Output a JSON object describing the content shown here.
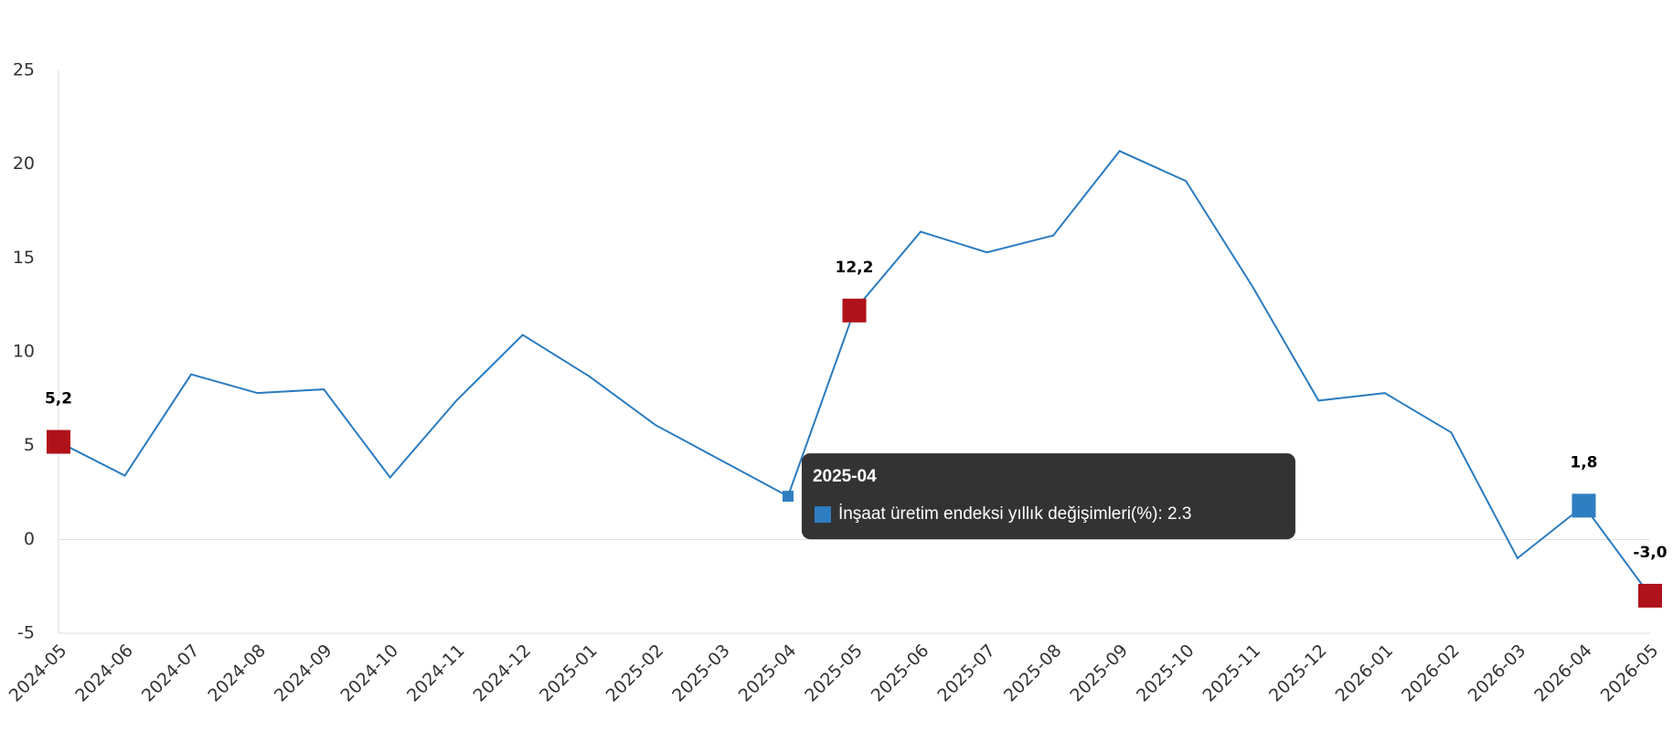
{
  "chart_data": {
    "type": "line",
    "categories": [
      "2024-05",
      "2024-06",
      "2024-07",
      "2024-08",
      "2024-09",
      "2024-10",
      "2024-11",
      "2024-12",
      "2025-01",
      "2025-02",
      "2025-03",
      "2025-04",
      "2025-05",
      "2025-06",
      "2025-07",
      "2025-08",
      "2025-09",
      "2025-10",
      "2025-11",
      "2025-12",
      "2026-01",
      "2026-02",
      "2026-03",
      "2026-04",
      "2026-05"
    ],
    "values": [
      5.2,
      3.4,
      8.8,
      7.8,
      8.0,
      3.3,
      7.4,
      10.9,
      8.7,
      6.1,
      4.2,
      2.3,
      12.2,
      16.4,
      15.3,
      16.2,
      20.7,
      19.1,
      13.5,
      7.4,
      7.8,
      5.7,
      -1.0,
      1.8,
      -3.0
    ],
    "value_labels": [
      "5,2",
      null,
      null,
      null,
      null,
      null,
      null,
      null,
      null,
      null,
      null,
      null,
      "12,2",
      null,
      null,
      null,
      null,
      null,
      null,
      null,
      null,
      null,
      null,
      "1,8",
      "-3,0"
    ],
    "marker_colors": [
      "#b0121b",
      null,
      null,
      null,
      null,
      null,
      null,
      null,
      null,
      null,
      null,
      null,
      "#b0121b",
      null,
      null,
      null,
      null,
      null,
      null,
      null,
      null,
      null,
      null,
      "#2f7ec1",
      "#b0121b"
    ],
    "color": "#2a7bbf",
    "ylim": [
      -5,
      25
    ],
    "yticks": [
      -5,
      0,
      5,
      10,
      15,
      20,
      25
    ],
    "tooltip": {
      "title": "2025-04",
      "text": "İnşaat üretim endeksi yıllık değişimleri(%): 2.3",
      "color": "#2f7ec1"
    }
  }
}
